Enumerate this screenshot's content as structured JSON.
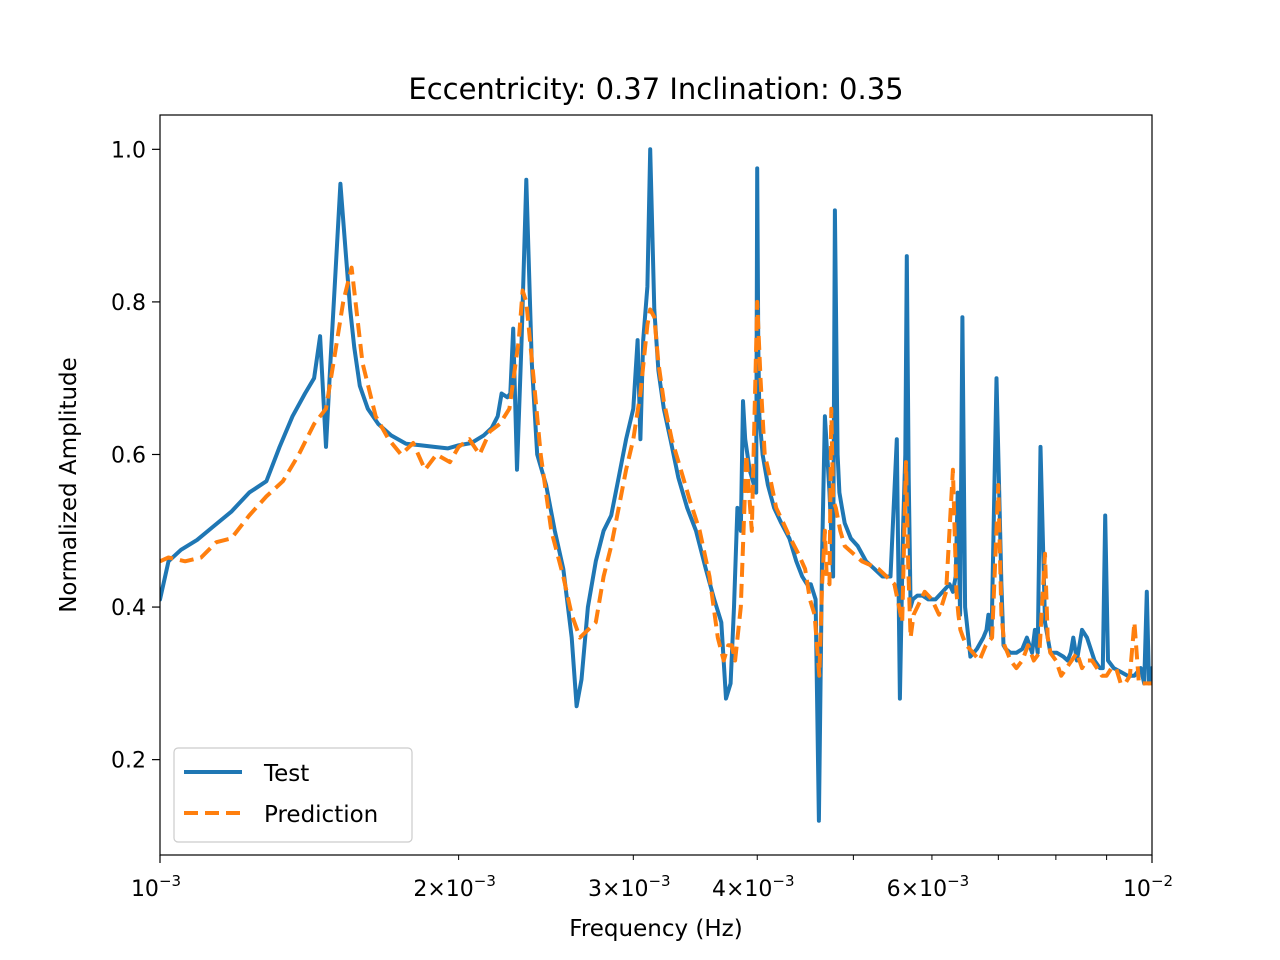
{
  "chart_data": {
    "type": "line",
    "title": "Eccentricity: 0.37   Inclination: 0.35",
    "xlabel": "Frequency (Hz)",
    "ylabel": "Normalized Amplitude",
    "xscale": "log",
    "xlim": [
      0.001,
      0.01
    ],
    "ylim": [
      0.075,
      1.045
    ],
    "x_major_tick_labels": [
      {
        "value": 0.001,
        "base": "10",
        "exp": "−3"
      },
      {
        "value": 0.01,
        "base": "10",
        "exp": "−2"
      }
    ],
    "x_minor_tick_labels": [
      {
        "value": 0.002,
        "mant": "2",
        "exp": "−3"
      },
      {
        "value": 0.003,
        "mant": "3",
        "exp": "−3"
      },
      {
        "value": 0.004,
        "mant": "4",
        "exp": "−3"
      },
      {
        "value": 0.006,
        "mant": "6",
        "exp": "−3"
      }
    ],
    "x_minor_ticks": [
      0.002,
      0.003,
      0.004,
      0.005,
      0.006,
      0.007,
      0.008,
      0.009
    ],
    "y_ticks": [
      {
        "value": 0.2,
        "label": "0.2"
      },
      {
        "value": 0.4,
        "label": "0.4"
      },
      {
        "value": 0.6,
        "label": "0.6"
      },
      {
        "value": 0.8,
        "label": "0.8"
      },
      {
        "value": 1.0,
        "label": "1.0"
      }
    ],
    "grid": false,
    "legend_position": "lower-left",
    "series": [
      {
        "name": "Test",
        "color": "#1f77b4",
        "style": "solid",
        "x": [
          0.001,
          0.00102,
          0.00105,
          0.00109,
          0.00113,
          0.00118,
          0.00123,
          0.00128,
          0.00132,
          0.00136,
          0.0014,
          0.00143,
          0.00145,
          0.00147,
          0.001485,
          0.0015,
          0.00152,
          0.00154,
          0.001555,
          0.00157,
          0.00159,
          0.00162,
          0.00166,
          0.00171,
          0.00177,
          0.00183,
          0.00189,
          0.00195,
          0.002,
          0.00206,
          0.00212,
          0.00216,
          0.00219,
          0.00221,
          0.00224,
          0.002255,
          0.00227,
          0.00229,
          0.002315,
          0.00234,
          0.00237,
          0.0024,
          0.00245,
          0.0025,
          0.00255,
          0.0026,
          0.00263,
          0.00266,
          0.0027,
          0.00275,
          0.0028,
          0.00285,
          0.0029,
          0.00295,
          0.003,
          0.00303,
          0.00305,
          0.00307,
          0.0031,
          0.00312,
          0.00315,
          0.00318,
          0.00322,
          0.00327,
          0.00333,
          0.0034,
          0.00347,
          0.00355,
          0.00362,
          0.00368,
          0.00372,
          0.00376,
          0.00379,
          0.00382,
          0.00385,
          0.00387,
          0.00389,
          0.00393,
          0.00397,
          0.00399,
          0.004,
          0.00401,
          0.00402,
          0.00405,
          0.0041,
          0.00416,
          0.00423,
          0.00431,
          0.00438,
          0.00444,
          0.00449,
          0.00453,
          0.00458,
          0.004615,
          0.00465,
          0.00468,
          0.00473,
          0.00477,
          0.00479,
          0.00482,
          0.00484,
          0.00487,
          0.0049,
          0.00497,
          0.00505,
          0.00515,
          0.00525,
          0.00535,
          0.00545,
          0.00553,
          0.00557,
          0.00561,
          0.00564,
          0.00566,
          0.005685,
          0.00571,
          0.00574,
          0.0058,
          0.00587,
          0.00595,
          0.00605,
          0.00615,
          0.00625,
          0.0063,
          0.00634,
          0.00637,
          0.006405,
          0.00644,
          0.00648,
          0.00656,
          0.00666,
          0.00676,
          0.00681,
          0.00684,
          0.00689,
          0.00697,
          0.00705,
          0.007085,
          0.00712,
          0.0072,
          0.0073,
          0.0074,
          0.00748,
          0.00757,
          0.00762,
          0.00767,
          0.00772,
          0.0078,
          0.0079,
          0.00802,
          0.00814,
          0.00822,
          0.00828,
          0.00833,
          0.0084,
          0.0085,
          0.0086,
          0.00875,
          0.00886,
          0.00892,
          0.00897,
          0.00903,
          0.00915,
          0.0093,
          0.00945,
          0.0096,
          0.00974,
          0.00982,
          0.00988,
          0.00993,
          0.01
        ],
        "y": [
          0.41,
          0.46,
          0.475,
          0.488,
          0.505,
          0.525,
          0.55,
          0.565,
          0.61,
          0.65,
          0.68,
          0.7,
          0.755,
          0.61,
          0.72,
          0.82,
          0.955,
          0.86,
          0.79,
          0.74,
          0.69,
          0.66,
          0.64,
          0.625,
          0.614,
          0.612,
          0.61,
          0.608,
          0.612,
          0.615,
          0.625,
          0.635,
          0.65,
          0.68,
          0.675,
          0.68,
          0.765,
          0.58,
          0.75,
          0.96,
          0.72,
          0.6,
          0.56,
          0.5,
          0.45,
          0.36,
          0.27,
          0.305,
          0.4,
          0.46,
          0.5,
          0.52,
          0.57,
          0.62,
          0.66,
          0.75,
          0.62,
          0.75,
          0.82,
          1.0,
          0.79,
          0.71,
          0.66,
          0.62,
          0.57,
          0.53,
          0.5,
          0.45,
          0.41,
          0.38,
          0.28,
          0.3,
          0.4,
          0.53,
          0.5,
          0.67,
          0.62,
          0.58,
          0.56,
          0.55,
          0.975,
          0.74,
          0.65,
          0.6,
          0.56,
          0.53,
          0.51,
          0.49,
          0.46,
          0.44,
          0.43,
          0.43,
          0.41,
          0.12,
          0.47,
          0.65,
          0.55,
          0.44,
          0.92,
          0.6,
          0.55,
          0.53,
          0.51,
          0.49,
          0.48,
          0.46,
          0.45,
          0.44,
          0.44,
          0.62,
          0.28,
          0.5,
          0.6,
          0.86,
          0.57,
          0.4,
          0.41,
          0.415,
          0.415,
          0.41,
          0.41,
          0.42,
          0.43,
          0.42,
          0.44,
          0.55,
          0.39,
          0.78,
          0.4,
          0.335,
          0.345,
          0.36,
          0.37,
          0.39,
          0.36,
          0.7,
          0.43,
          0.35,
          0.345,
          0.34,
          0.34,
          0.345,
          0.36,
          0.34,
          0.37,
          0.34,
          0.61,
          0.38,
          0.34,
          0.34,
          0.335,
          0.33,
          0.34,
          0.36,
          0.33,
          0.37,
          0.36,
          0.33,
          0.32,
          0.32,
          0.52,
          0.33,
          0.32,
          0.315,
          0.31,
          0.31,
          0.32,
          0.3,
          0.42,
          0.3,
          0.32
        ]
      },
      {
        "name": "Prediction",
        "color": "#ff7f0e",
        "style": "dashed",
        "x": [
          0.001,
          0.00102,
          0.00106,
          0.0011,
          0.00114,
          0.00118,
          0.00123,
          0.00128,
          0.00133,
          0.00138,
          0.00143,
          0.00147,
          0.0015,
          0.00153,
          0.00156,
          0.0016,
          0.00165,
          0.0017,
          0.00175,
          0.0018,
          0.00185,
          0.0019,
          0.00196,
          0.002,
          0.00205,
          0.0021,
          0.00215,
          0.0022,
          0.00225,
          0.0023,
          0.00232,
          0.00234,
          0.00238,
          0.00242,
          0.00248,
          0.00255,
          0.0026,
          0.00265,
          0.0027,
          0.00275,
          0.0028,
          0.00285,
          0.0029,
          0.00295,
          0.003,
          0.00305,
          0.0031,
          0.00312,
          0.00315,
          0.00318,
          0.00322,
          0.00328,
          0.00335,
          0.00342,
          0.0035,
          0.00358,
          0.00365,
          0.0037,
          0.00374,
          0.00377,
          0.0038,
          0.00385,
          0.0039,
          0.00395,
          0.004,
          0.00403,
          0.00407,
          0.00412,
          0.00418,
          0.00425,
          0.00432,
          0.0044,
          0.00447,
          0.00452,
          0.00457,
          0.00462,
          0.00465,
          0.00468,
          0.0047,
          0.00473,
          0.00475,
          0.00477,
          0.0048,
          0.00485,
          0.0049,
          0.005,
          0.0051,
          0.0052,
          0.0053,
          0.0054,
          0.0055,
          0.0056,
          0.00565,
          0.00568,
          0.00571,
          0.00575,
          0.0058,
          0.0059,
          0.006,
          0.0061,
          0.0062,
          0.0063,
          0.00635,
          0.00638,
          0.00641,
          0.00645,
          0.0065,
          0.0066,
          0.0067,
          0.0068,
          0.0069,
          0.007,
          0.00705,
          0.0071,
          0.00715,
          0.0072,
          0.0073,
          0.0074,
          0.0075,
          0.0076,
          0.0077,
          0.0078,
          0.00785,
          0.0079,
          0.008,
          0.0081,
          0.0082,
          0.0083,
          0.0084,
          0.0085,
          0.0086,
          0.0087,
          0.0088,
          0.0089,
          0.009,
          0.0091,
          0.0092,
          0.0093,
          0.0094,
          0.0095,
          0.0096,
          0.0097,
          0.0098,
          0.0099,
          0.01
        ],
        "y": [
          0.46,
          0.465,
          0.46,
          0.465,
          0.485,
          0.49,
          0.52,
          0.545,
          0.565,
          0.6,
          0.64,
          0.66,
          0.73,
          0.8,
          0.845,
          0.72,
          0.65,
          0.62,
          0.6,
          0.615,
          0.58,
          0.6,
          0.59,
          0.61,
          0.62,
          0.6,
          0.63,
          0.64,
          0.66,
          0.75,
          0.815,
          0.8,
          0.7,
          0.6,
          0.5,
          0.44,
          0.39,
          0.36,
          0.37,
          0.38,
          0.44,
          0.48,
          0.53,
          0.58,
          0.62,
          0.68,
          0.77,
          0.79,
          0.78,
          0.72,
          0.67,
          0.62,
          0.58,
          0.54,
          0.5,
          0.44,
          0.36,
          0.33,
          0.35,
          0.35,
          0.33,
          0.4,
          0.6,
          0.5,
          0.8,
          0.7,
          0.6,
          0.57,
          0.53,
          0.51,
          0.49,
          0.47,
          0.45,
          0.41,
          0.39,
          0.31,
          0.43,
          0.5,
          0.44,
          0.43,
          0.66,
          0.54,
          0.53,
          0.5,
          0.48,
          0.47,
          0.46,
          0.455,
          0.45,
          0.44,
          0.43,
          0.38,
          0.59,
          0.45,
          0.36,
          0.39,
          0.4,
          0.42,
          0.41,
          0.39,
          0.42,
          0.58,
          0.42,
          0.39,
          0.37,
          0.36,
          0.35,
          0.34,
          0.33,
          0.35,
          0.36,
          0.56,
          0.39,
          0.35,
          0.34,
          0.33,
          0.32,
          0.33,
          0.35,
          0.33,
          0.34,
          0.47,
          0.36,
          0.34,
          0.33,
          0.31,
          0.32,
          0.33,
          0.34,
          0.32,
          0.33,
          0.33,
          0.32,
          0.31,
          0.31,
          0.32,
          0.32,
          0.3,
          0.3,
          0.31,
          0.38,
          0.3,
          0.3,
          0.3,
          0.3
        ]
      }
    ]
  }
}
